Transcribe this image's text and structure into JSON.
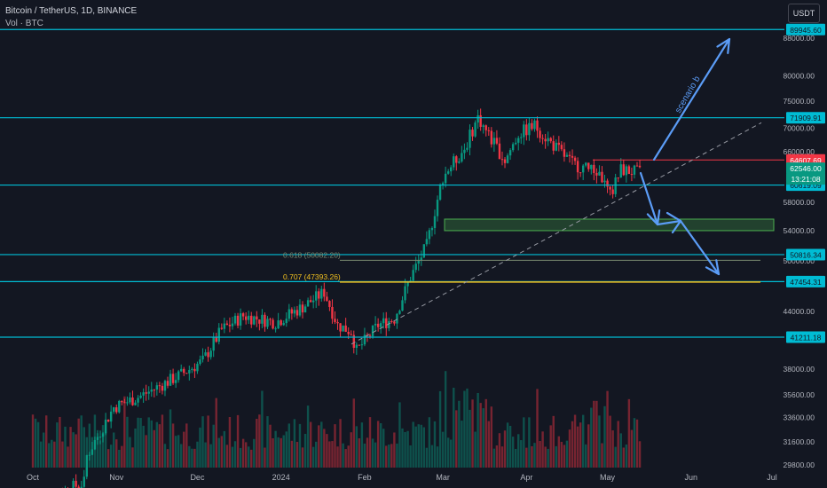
{
  "header": {
    "symbol_line": "Bitcoin / TetherUS, 1D, BINANCE",
    "indicator_line": "Vol · BTC",
    "currency": "USDT"
  },
  "chart_data": {
    "type": "candlestick",
    "price_axis": {
      "ticks": [
        88000,
        80000,
        75000,
        70000,
        66000,
        58000,
        54000,
        50000,
        44000,
        38000,
        35600,
        33600,
        31600,
        29800
      ],
      "log_scale": true
    },
    "time_axis": {
      "labels": [
        "Oct",
        "Nov",
        "Dec",
        "2024",
        "Feb",
        "Mar",
        "Apr",
        "May",
        "Jun",
        "Jul"
      ]
    },
    "horizontal_levels": [
      {
        "label": "89945.60",
        "value": 89945.6,
        "color": "#00bcd4"
      },
      {
        "label": "71909.91",
        "value": 71909.91,
        "color": "#00bcd4"
      },
      {
        "label": "60619.09",
        "value": 60619.09,
        "color": "#00bcd4"
      },
      {
        "label": "50816.34",
        "value": 50816.34,
        "color": "#00bcd4"
      },
      {
        "label": "47454.31",
        "value": 47454.31,
        "color": "#00bcd4"
      },
      {
        "label": "41211.18",
        "value": 41211.18,
        "color": "#00bcd4"
      }
    ],
    "price_badges": [
      {
        "label": "64607.69",
        "value": 64607.69,
        "color": "#f23645"
      },
      {
        "label": "62546.00",
        "value": 62546.0,
        "color": "#089981"
      },
      {
        "label": "13:21:08",
        "value": 62546.0,
        "color": "#089981"
      }
    ],
    "fib_levels": [
      {
        "label": "0.618 (50082.20)",
        "value": 50082.2,
        "color": "#7a8a70"
      },
      {
        "label": "0.707 (47393.26)",
        "value": 47393.26,
        "color": "#f0c020"
      }
    ],
    "zone": {
      "from": 54000,
      "to": 55600,
      "color": "#4caf50"
    },
    "annotation": "scenario b",
    "up_color": "#089981",
    "down_color": "#f23645",
    "line_color": "#00bcd4",
    "arrow_color": "#5b9cf6"
  }
}
